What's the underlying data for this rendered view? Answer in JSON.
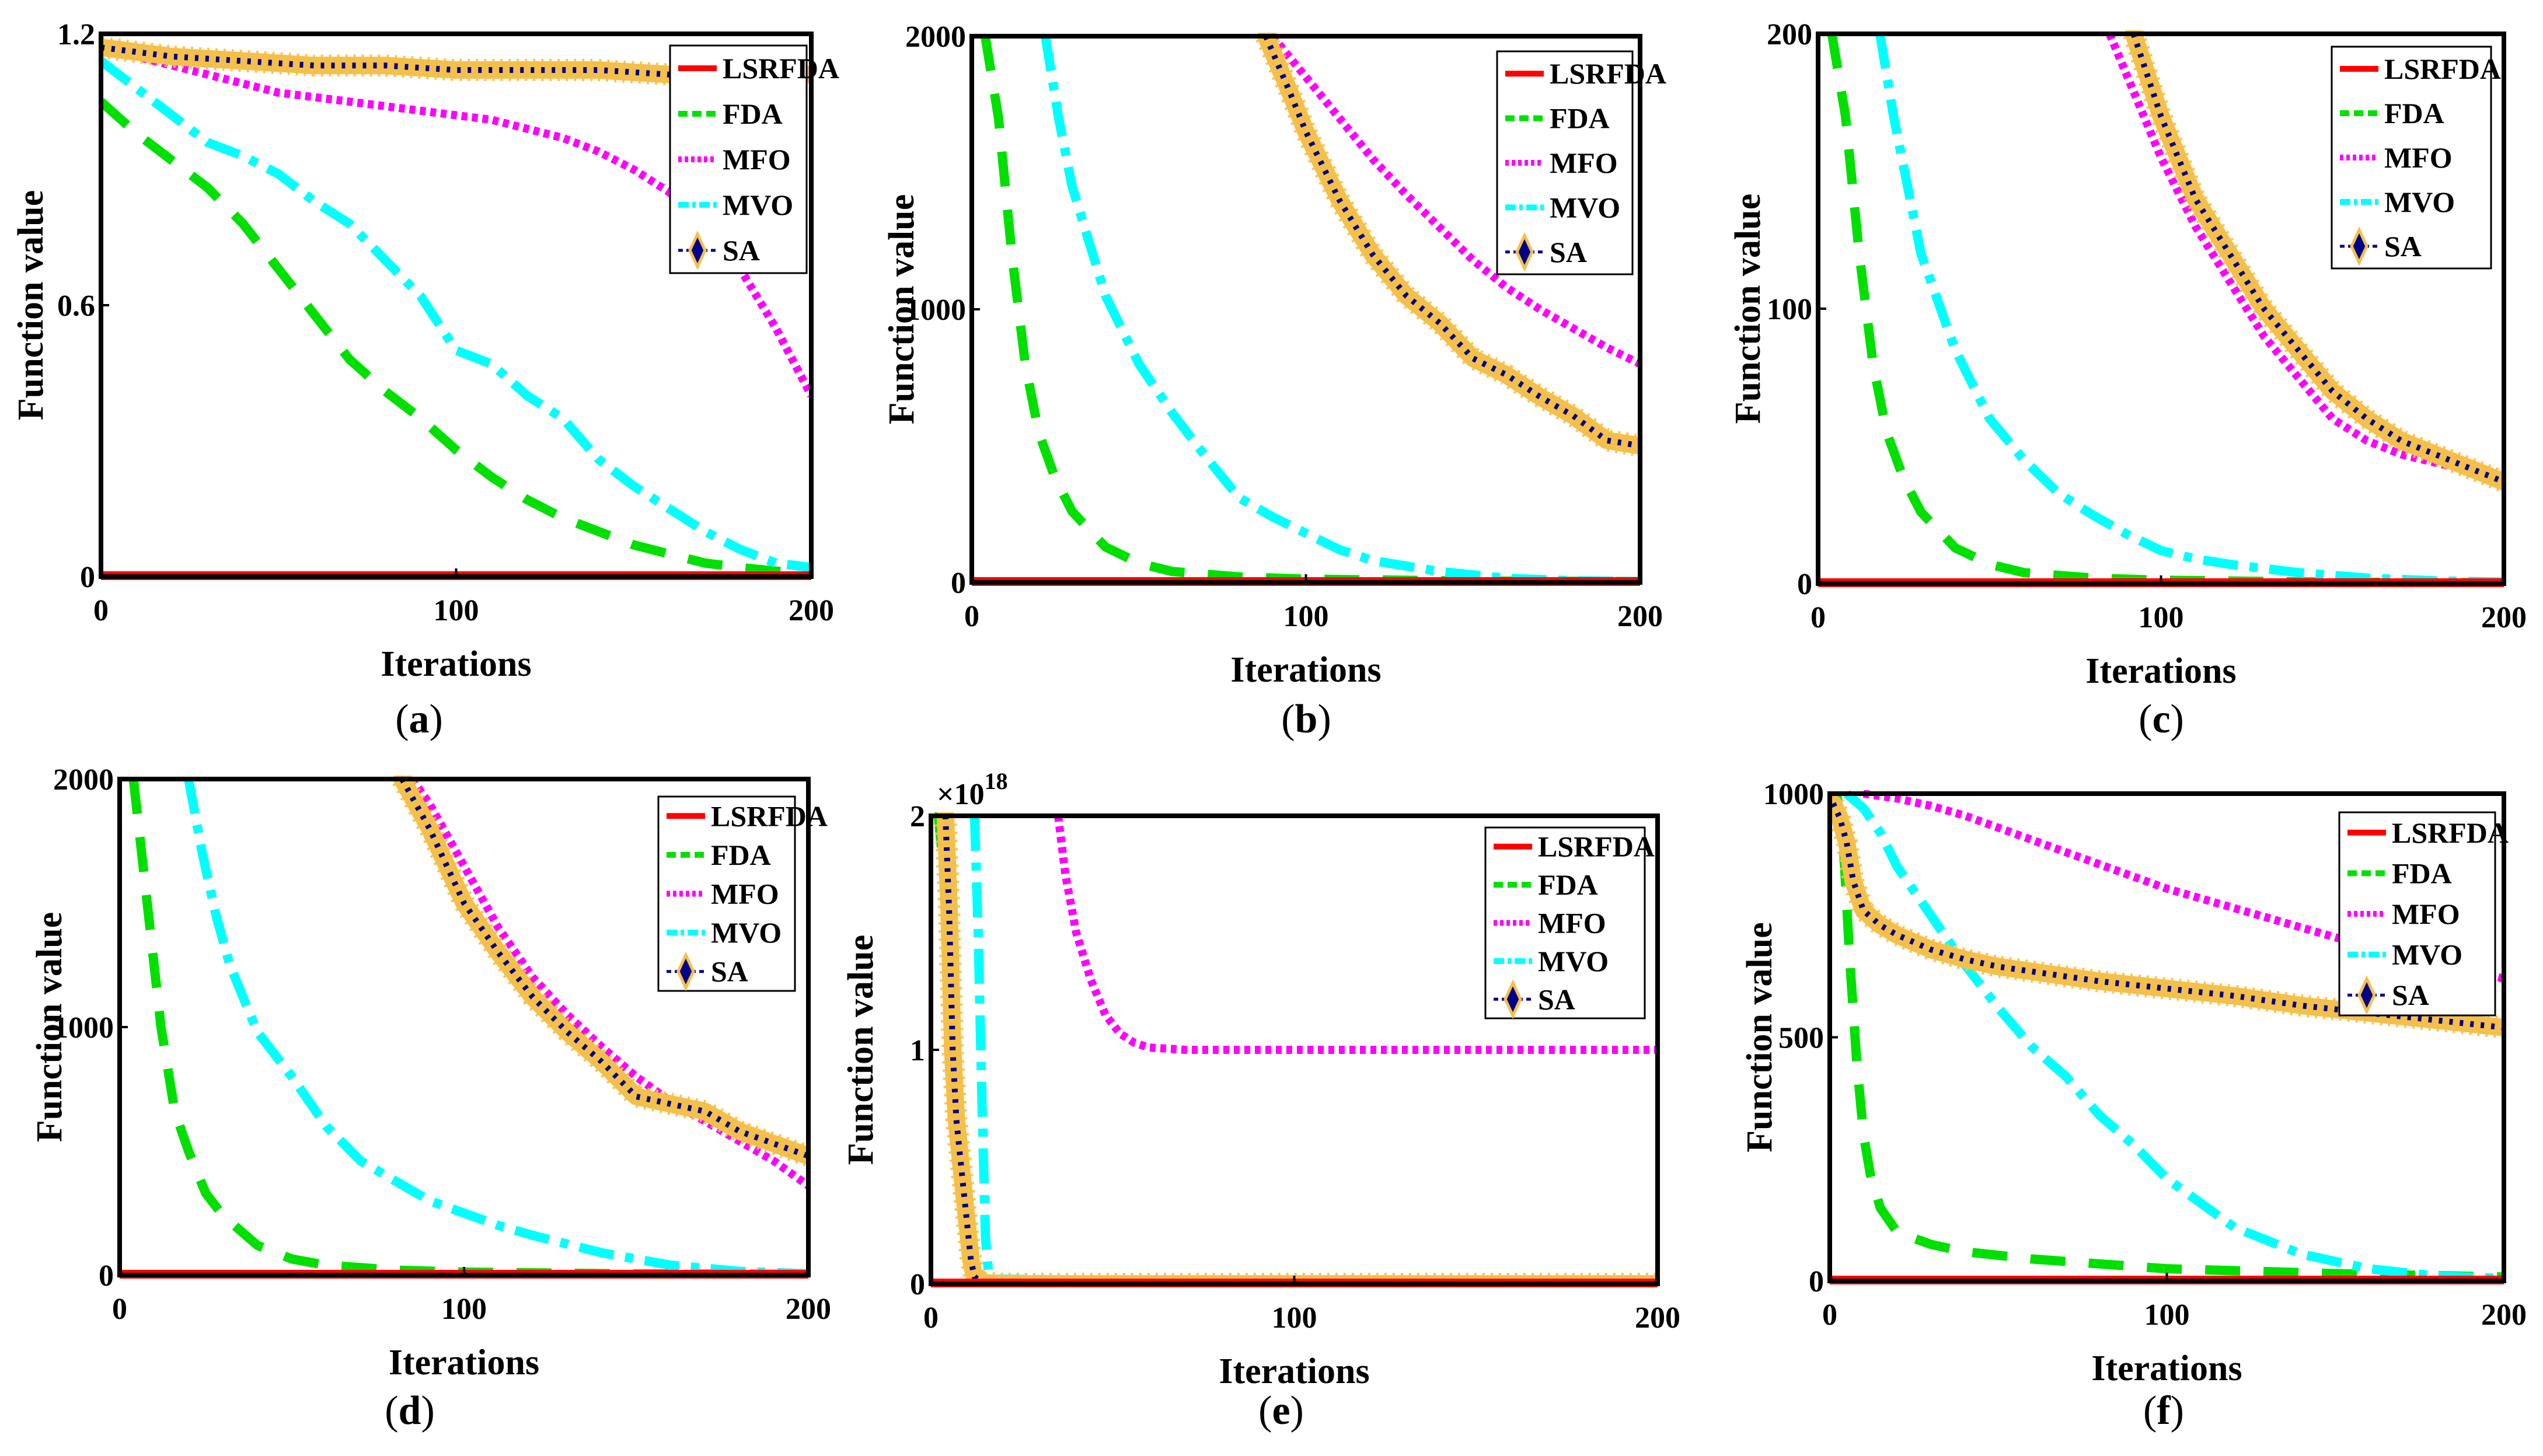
{
  "chart_data": [
    {
      "type": "line",
      "caption": "a",
      "xlabel": "Iterations",
      "ylabel": "Function value",
      "xlim": [
        0,
        200
      ],
      "ylim": [
        0,
        1.2
      ],
      "xticks": [
        "0",
        "100",
        "200"
      ],
      "yticks": [
        "0",
        "0.6",
        "1.2"
      ],
      "legend_location": "top-right",
      "series": [
        {
          "name": "LSRFDA",
          "x": [
            0,
            200
          ],
          "y": [
            0,
            0
          ]
        },
        {
          "name": "FDA",
          "x": [
            0,
            10,
            20,
            30,
            40,
            50,
            60,
            70,
            80,
            90,
            100,
            110,
            120,
            130,
            140,
            150,
            160,
            170,
            180,
            190,
            200
          ],
          "y": [
            1.05,
            0.98,
            0.92,
            0.86,
            0.78,
            0.68,
            0.58,
            0.48,
            0.41,
            0.35,
            0.28,
            0.22,
            0.17,
            0.13,
            0.1,
            0.07,
            0.05,
            0.03,
            0.02,
            0.012,
            0.005
          ]
        },
        {
          "name": "MFO",
          "x": [
            0,
            10,
            20,
            30,
            40,
            50,
            60,
            70,
            80,
            90,
            100,
            110,
            120,
            130,
            140,
            150,
            160,
            170,
            180,
            190,
            200
          ],
          "y": [
            1.17,
            1.15,
            1.13,
            1.11,
            1.09,
            1.07,
            1.06,
            1.05,
            1.04,
            1.03,
            1.02,
            1.01,
            0.99,
            0.97,
            0.94,
            0.9,
            0.85,
            0.78,
            0.68,
            0.55,
            0.4
          ]
        },
        {
          "name": "MVO",
          "x": [
            0,
            10,
            20,
            30,
            40,
            50,
            60,
            70,
            80,
            90,
            100,
            110,
            120,
            130,
            140,
            150,
            160,
            170,
            180,
            190,
            200
          ],
          "y": [
            1.14,
            1.08,
            1.02,
            0.96,
            0.93,
            0.89,
            0.83,
            0.78,
            0.7,
            0.62,
            0.5,
            0.47,
            0.4,
            0.35,
            0.26,
            0.2,
            0.15,
            0.1,
            0.06,
            0.03,
            0.02
          ]
        },
        {
          "name": "SA",
          "x": [
            0,
            20,
            40,
            60,
            80,
            100,
            120,
            140,
            160,
            180,
            200
          ],
          "y": [
            1.17,
            1.15,
            1.14,
            1.13,
            1.13,
            1.12,
            1.12,
            1.12,
            1.11,
            1.11,
            1.11
          ]
        }
      ]
    },
    {
      "type": "line",
      "caption": "b",
      "xlabel": "Iterations",
      "ylabel": "Function value",
      "xlim": [
        0,
        200
      ],
      "ylim": [
        0,
        2000
      ],
      "xticks": [
        "0",
        "100",
        "200"
      ],
      "yticks": [
        "0",
        "1000",
        "2000"
      ],
      "legend_location": "top-right",
      "series": [
        {
          "name": "LSRFDA",
          "x": [
            0,
            200
          ],
          "y": [
            0,
            0
          ]
        },
        {
          "name": "FDA",
          "x": [
            4,
            8,
            12,
            16,
            20,
            25,
            30,
            40,
            50,
            60,
            80,
            100,
            150,
            200
          ],
          "y": [
            2000,
            1700,
            1200,
            800,
            550,
            380,
            260,
            130,
            70,
            40,
            20,
            12,
            5,
            3
          ]
        },
        {
          "name": "MVO",
          "x": [
            22,
            26,
            30,
            40,
            50,
            60,
            70,
            80,
            90,
            100,
            110,
            120,
            140,
            160,
            180,
            200
          ],
          "y": [
            2000,
            1700,
            1450,
            1050,
            800,
            620,
            460,
            310,
            240,
            180,
            120,
            80,
            40,
            15,
            6,
            3
          ]
        },
        {
          "name": "MFO",
          "x": [
            90,
            100,
            110,
            120,
            130,
            140,
            150,
            160,
            170,
            180,
            190,
            200
          ],
          "y": [
            2000,
            1850,
            1700,
            1550,
            1420,
            1300,
            1180,
            1080,
            1000,
            930,
            860,
            800
          ]
        },
        {
          "name": "SA",
          "x": [
            88,
            95,
            100,
            110,
            120,
            130,
            140,
            150,
            160,
            170,
            180,
            190,
            200
          ],
          "y": [
            2000,
            1800,
            1650,
            1400,
            1200,
            1050,
            950,
            820,
            760,
            680,
            610,
            520,
            500
          ]
        }
      ]
    },
    {
      "type": "line",
      "caption": "c",
      "xlabel": "Iterations",
      "ylabel": "Function value",
      "xlim": [
        0,
        200
      ],
      "ylim": [
        0,
        200
      ],
      "xticks": [
        "0",
        "100",
        "200"
      ],
      "yticks": [
        "0",
        "100",
        "200"
      ],
      "legend_location": "top-right",
      "series": [
        {
          "name": "LSRFDA",
          "x": [
            0,
            200
          ],
          "y": [
            0,
            0
          ]
        },
        {
          "name": "FDA",
          "x": [
            4,
            8,
            12,
            16,
            20,
            25,
            30,
            40,
            50,
            60,
            80,
            100,
            150,
            200
          ],
          "y": [
            200,
            170,
            120,
            80,
            55,
            38,
            26,
            13,
            7,
            4,
            2,
            1.2,
            0.5,
            0.3
          ]
        },
        {
          "name": "MVO",
          "x": [
            18,
            22,
            26,
            30,
            40,
            50,
            60,
            70,
            80,
            90,
            100,
            110,
            120,
            140,
            160,
            180,
            200
          ],
          "y": [
            200,
            170,
            145,
            120,
            85,
            60,
            45,
            33,
            25,
            18,
            12,
            9,
            7,
            4,
            2,
            1,
            0.5
          ]
        },
        {
          "name": "MFO",
          "x": [
            85,
            90,
            95,
            100,
            110,
            120,
            130,
            140,
            150,
            160,
            170,
            180,
            190,
            200
          ],
          "y": [
            200,
            185,
            170,
            155,
            130,
            110,
            90,
            75,
            60,
            52,
            47,
            44,
            41,
            39
          ]
        },
        {
          "name": "SA",
          "x": [
            92,
            96,
            100,
            105,
            110,
            120,
            130,
            140,
            150,
            160,
            170,
            180,
            190,
            200
          ],
          "y": [
            200,
            185,
            170,
            155,
            140,
            120,
            100,
            85,
            70,
            60,
            52,
            47,
            42,
            37
          ]
        }
      ]
    },
    {
      "type": "line",
      "caption": "d",
      "xlabel": "Iterations",
      "ylabel": "Function value",
      "xlim": [
        0,
        200
      ],
      "ylim": [
        0,
        2000
      ],
      "xticks": [
        "0",
        "100",
        "200"
      ],
      "yticks": [
        "0",
        "1000",
        "2000"
      ],
      "legend_location": "top-right",
      "series": [
        {
          "name": "LSRFDA",
          "x": [
            0,
            200
          ],
          "y": [
            0,
            0
          ]
        },
        {
          "name": "FDA",
          "x": [
            4,
            8,
            12,
            16,
            20,
            25,
            30,
            40,
            50,
            60,
            80,
            100,
            150,
            200
          ],
          "y": [
            2000,
            1500,
            1000,
            660,
            500,
            330,
            240,
            120,
            65,
            40,
            20,
            12,
            5,
            3
          ]
        },
        {
          "name": "MVO",
          "x": [
            20,
            24,
            28,
            32,
            40,
            50,
            60,
            70,
            80,
            90,
            100,
            110,
            120,
            140,
            160,
            180,
            200
          ],
          "y": [
            2000,
            1700,
            1450,
            1250,
            980,
            800,
            600,
            460,
            380,
            300,
            250,
            200,
            160,
            90,
            40,
            15,
            5
          ]
        },
        {
          "name": "MFO",
          "x": [
            85,
            90,
            100,
            110,
            120,
            130,
            140,
            150,
            160,
            170,
            180,
            190,
            200
          ],
          "y": [
            2000,
            1900,
            1650,
            1400,
            1200,
            1050,
            920,
            800,
            700,
            620,
            540,
            460,
            360
          ]
        },
        {
          "name": "SA",
          "x": [
            82,
            90,
            100,
            110,
            120,
            130,
            140,
            150,
            160,
            170,
            180,
            190,
            200
          ],
          "y": [
            2000,
            1800,
            1500,
            1300,
            1120,
            980,
            860,
            720,
            690,
            660,
            580,
            530,
            480
          ]
        }
      ]
    },
    {
      "type": "line",
      "caption": "e",
      "xlabel": "Iterations",
      "ylabel": "Function value",
      "y_multiplier": "×10",
      "y_exponent": "18",
      "xlim": [
        0,
        200
      ],
      "ylim": [
        0,
        2
      ],
      "xticks": [
        "0",
        "100",
        "200"
      ],
      "yticks": [
        "0",
        "1",
        "2"
      ],
      "legend_location": "top-right",
      "series": [
        {
          "name": "LSRFDA",
          "x": [
            0,
            200
          ],
          "y": [
            0,
            0
          ]
        },
        {
          "name": "FDA",
          "x": [
            1,
            2,
            4,
            6,
            8,
            10,
            12,
            14,
            200
          ],
          "y": [
            2,
            2,
            1.7,
            1.2,
            0.7,
            0.3,
            0.08,
            0.01,
            0
          ]
        },
        {
          "name": "MVO",
          "x": [
            12,
            13,
            14,
            15,
            16,
            200
          ],
          "y": [
            2,
            1.5,
            0.8,
            0.2,
            0.02,
            0
          ]
        },
        {
          "name": "MFO",
          "x": [
            35,
            37,
            40,
            44,
            48,
            52,
            56,
            60,
            70,
            80,
            100,
            150,
            200
          ],
          "y": [
            2,
            1.75,
            1.5,
            1.3,
            1.15,
            1.07,
            1.03,
            1.01,
            1.0,
            1.0,
            1.0,
            1.0,
            1.0
          ]
        },
        {
          "name": "SA",
          "x": [
            4,
            5,
            6,
            7,
            8,
            9,
            10,
            11,
            12,
            14,
            20,
            50,
            100,
            150,
            200
          ],
          "y": [
            2,
            1.6,
            1.0,
            0.7,
            0.55,
            0.4,
            0.25,
            0.1,
            0.03,
            0.005,
            0,
            0,
            0,
            0,
            0
          ]
        }
      ]
    },
    {
      "type": "line",
      "caption": "f",
      "xlabel": "Iterations",
      "ylabel": "Function value",
      "xlim": [
        0,
        200
      ],
      "ylim": [
        0,
        1000
      ],
      "xticks": [
        "0",
        "100",
        "200"
      ],
      "yticks": [
        "0",
        "500",
        "1000"
      ],
      "legend_location": "top-right",
      "series": [
        {
          "name": "LSRFDA",
          "x": [
            0,
            200
          ],
          "y": [
            0,
            0
          ]
        },
        {
          "name": "FDA",
          "x": [
            2,
            4,
            6,
            8,
            10,
            12,
            15,
            20,
            30,
            40,
            60,
            80,
            100,
            150,
            200
          ],
          "y": [
            1000,
            900,
            650,
            450,
            300,
            220,
            150,
            100,
            75,
            60,
            45,
            35,
            25,
            15,
            8
          ]
        },
        {
          "name": "MVO",
          "x": [
            5,
            10,
            15,
            20,
            30,
            40,
            50,
            60,
            70,
            80,
            90,
            100,
            110,
            120,
            140,
            160,
            180,
            200
          ],
          "y": [
            1000,
            970,
            920,
            850,
            750,
            650,
            560,
            480,
            420,
            340,
            280,
            210,
            160,
            110,
            55,
            25,
            10,
            5
          ]
        },
        {
          "name": "MFO",
          "x": [
            10,
            20,
            30,
            40,
            50,
            60,
            70,
            80,
            90,
            100,
            110,
            120,
            130,
            140,
            150,
            160,
            170,
            180,
            190,
            200
          ],
          "y": [
            1000,
            990,
            975,
            955,
            930,
            905,
            880,
            855,
            830,
            805,
            785,
            765,
            745,
            725,
            705,
            690,
            670,
            655,
            640,
            620
          ]
        },
        {
          "name": "SA",
          "x": [
            1,
            3,
            5,
            7,
            10,
            15,
            20,
            30,
            40,
            50,
            60,
            80,
            100,
            120,
            140,
            160,
            180,
            200
          ],
          "y": [
            980,
            950,
            900,
            820,
            760,
            730,
            710,
            680,
            660,
            645,
            635,
            615,
            600,
            585,
            565,
            550,
            535,
            520
          ]
        }
      ]
    }
  ],
  "styles": {
    "LSRFDA": {
      "color": "#ff0000",
      "dash": "",
      "width": 18,
      "marker": false
    },
    "FDA": {
      "color": "#00e000",
      "dash": "60 40",
      "width": 16,
      "marker": false
    },
    "MFO": {
      "color": "#ff00ff",
      "dash": "10 8",
      "width": 14,
      "marker": false
    },
    "MVO": {
      "color": "#00ffff",
      "dash": "60 20 14 20",
      "width": 16,
      "marker": false
    },
    "SA": {
      "color": "#00008b",
      "dash": "",
      "width": 4,
      "marker": true,
      "marker_color": "#f5c04a"
    }
  }
}
